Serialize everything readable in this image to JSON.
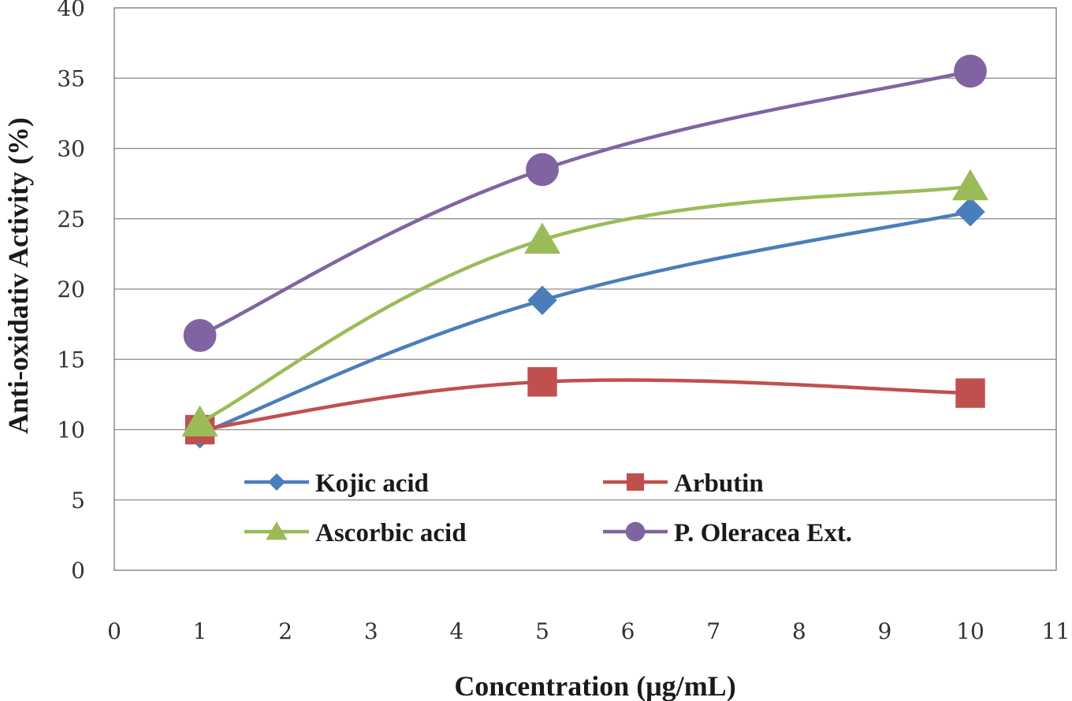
{
  "chart_data": {
    "type": "line",
    "title": "",
    "xlabel": "Concentration (μg/mL)",
    "ylabel": "Anti-oxidativ Activity (%)",
    "xlim": [
      0,
      11
    ],
    "ylim": [
      0,
      40
    ],
    "xticks": [
      0,
      1,
      2,
      3,
      4,
      5,
      6,
      7,
      8,
      9,
      10,
      11
    ],
    "yticks": [
      0,
      5,
      10,
      15,
      20,
      25,
      30,
      35,
      40
    ],
    "grid": "horizontal",
    "legend_position": "inside-bottom",
    "x": [
      1,
      5,
      10
    ],
    "series": [
      {
        "name": "Kojic acid",
        "values": [
          9.7,
          19.2,
          25.5
        ],
        "color": "#4a7ebb",
        "marker": "diamond"
      },
      {
        "name": "Arbutin",
        "values": [
          10.0,
          13.4,
          12.6
        ],
        "color": "#c0504d",
        "marker": "square"
      },
      {
        "name": "Ascorbic acid",
        "values": [
          10.5,
          23.5,
          27.3
        ],
        "color": "#9bbb59",
        "marker": "triangle"
      },
      {
        "name": "P. Oleracea Ext.",
        "values": [
          16.7,
          28.5,
          35.5
        ],
        "color": "#8064a2",
        "marker": "circle"
      }
    ]
  }
}
